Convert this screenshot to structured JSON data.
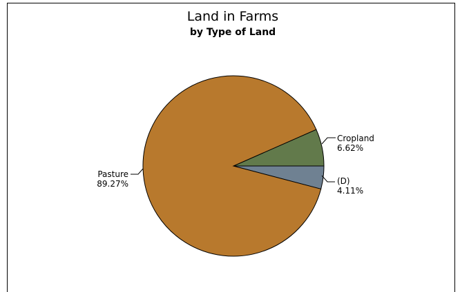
{
  "chart_data": {
    "type": "pie",
    "title": "Land in Farms",
    "subtitle": "by Type of Land",
    "slices": [
      {
        "label": "Cropland",
        "value_text": "6.62%",
        "value": 6.62,
        "color": "#627A4B"
      },
      {
        "label": "(D)",
        "value_text": "4.11%",
        "value": 4.11,
        "color": "#6F8192"
      },
      {
        "label": "Pasture",
        "value_text": "89.27%",
        "value": 89.27,
        "color": "#B8792D"
      }
    ]
  }
}
